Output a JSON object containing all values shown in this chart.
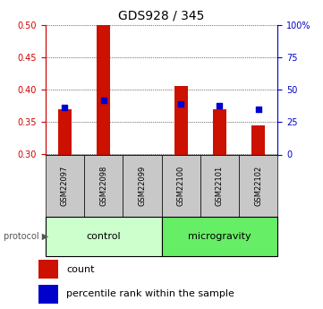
{
  "title": "GDS928 / 345",
  "samples": [
    "GSM22097",
    "GSM22098",
    "GSM22099",
    "GSM22100",
    "GSM22101",
    "GSM22102"
  ],
  "red_bar_tops": [
    0.37,
    0.5,
    0.3,
    0.405,
    0.37,
    0.345
  ],
  "blue_square_y": [
    0.372,
    0.383,
    null,
    0.378,
    0.375,
    0.37
  ],
  "y_min": 0.3,
  "y_max": 0.5,
  "y_ticks_left": [
    0.3,
    0.35,
    0.4,
    0.45,
    0.5
  ],
  "y_ticks_right": [
    0,
    25,
    50,
    75,
    100
  ],
  "bar_color": "#cc1100",
  "square_color": "#0000cc",
  "bar_width": 0.35,
  "protocol_labels": [
    "control",
    "microgravity"
  ],
  "protocol_groups": [
    3,
    3
  ],
  "protocol_colors_light": [
    "#ccffcc",
    "#66ee66"
  ],
  "sample_label_bg": "#c8c8c8",
  "left_axis_color": "#cc0000",
  "right_axis_color": "#0000cc",
  "grid_color": "#000000",
  "legend_items": [
    "count",
    "percentile rank within the sample"
  ],
  "legend_colors": [
    "#cc1100",
    "#0000cc"
  ]
}
